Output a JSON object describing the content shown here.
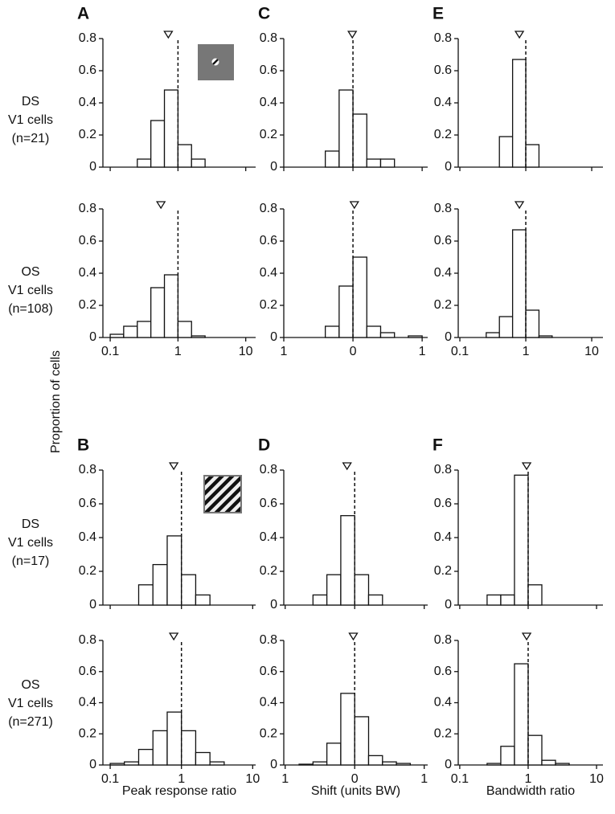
{
  "y_label": "Proportion of cells",
  "row_labels": [
    [
      "DS",
      "V1 cells",
      "(n=21)"
    ],
    [
      "OS",
      "V1 cells",
      "(n=108)"
    ],
    [
      "DS",
      "V1 cells",
      "(n=17)"
    ],
    [
      "OS",
      "V1 cells",
      "(n=271)"
    ]
  ],
  "chart_data": [
    {
      "type": "histogram",
      "label": "A",
      "log_x": true,
      "bins": [
        0.1,
        0.158,
        0.251,
        0.398,
        0.631,
        1,
        1.585,
        2.512,
        3.981,
        6.31,
        10
      ],
      "values": [
        0,
        0,
        0.05,
        0.29,
        0.48,
        0.14,
        0.05,
        0,
        0,
        0
      ],
      "xlim": [
        0.078,
        14
      ],
      "xticks": [
        0.1,
        1,
        10
      ],
      "show_xtick_labels": false,
      "ylim": [
        0,
        0.8
      ],
      "yticks": [
        0,
        0.2,
        0.4,
        0.6,
        0.8
      ],
      "median": 0.72,
      "ref_line": 1
    },
    {
      "type": "histogram",
      "label": "C",
      "log_x": false,
      "bins": [
        -1,
        -0.8,
        -0.6,
        -0.4,
        -0.2,
        0,
        0.2,
        0.4,
        0.6,
        0.8,
        1
      ],
      "values": [
        0,
        0,
        0,
        0.1,
        0.48,
        0.33,
        0.05,
        0.05,
        0,
        0
      ],
      "xlim": [
        -1,
        1.08
      ],
      "xticks": [
        {
          "value": -1,
          "label": "1"
        },
        0,
        1
      ],
      "show_xtick_labels": false,
      "ylim": [
        0,
        0.8
      ],
      "yticks": [
        0,
        0.2,
        0.4,
        0.6,
        0.8
      ],
      "median": -0.01,
      "ref_line": 0
    },
    {
      "type": "histogram",
      "label": "E",
      "log_x": true,
      "bins": [
        0.1,
        0.158,
        0.251,
        0.398,
        0.631,
        1,
        1.585,
        2.512,
        3.981,
        6.31,
        10
      ],
      "values": [
        0,
        0,
        0,
        0.19,
        0.67,
        0.14,
        0,
        0,
        0,
        0
      ],
      "xlim": [
        0.0945,
        14.8
      ],
      "xticks": [
        0.1,
        1,
        10
      ],
      "show_xtick_labels": false,
      "ylim": [
        0,
        0.8
      ],
      "yticks": [
        0,
        0.2,
        0.4,
        0.6,
        0.8
      ],
      "median": 0.8,
      "ref_line": 1
    },
    {
      "type": "histogram",
      "log_x": true,
      "bins": [
        0.1,
        0.158,
        0.251,
        0.398,
        0.631,
        1,
        1.585,
        2.512,
        3.981,
        6.31,
        10
      ],
      "values": [
        0.02,
        0.07,
        0.1,
        0.31,
        0.39,
        0.1,
        0.01,
        0,
        0,
        0
      ],
      "xlim": [
        0.078,
        14
      ],
      "xticks": [
        0.1,
        1,
        10
      ],
      "show_xtick_labels": true,
      "ylim": [
        0,
        0.8
      ],
      "yticks": [
        0,
        0.2,
        0.4,
        0.6,
        0.8
      ],
      "median": 0.56,
      "ref_line": 1
    },
    {
      "type": "histogram",
      "log_x": false,
      "bins": [
        -1,
        -0.8,
        -0.6,
        -0.4,
        -0.2,
        0,
        0.2,
        0.4,
        0.6,
        0.8,
        1
      ],
      "values": [
        0,
        0,
        0,
        0.07,
        0.32,
        0.5,
        0.07,
        0.03,
        0,
        0.01
      ],
      "xlim": [
        -1,
        1.08
      ],
      "xticks": [
        {
          "value": -1,
          "label": "1"
        },
        0,
        1
      ],
      "show_xtick_labels": true,
      "ylim": [
        0,
        0.8
      ],
      "yticks": [
        0,
        0.2,
        0.4,
        0.6,
        0.8
      ],
      "median": 0.02,
      "ref_line": 0
    },
    {
      "type": "histogram",
      "log_x": true,
      "bins": [
        0.1,
        0.158,
        0.251,
        0.398,
        0.631,
        1,
        1.585,
        2.512,
        3.981,
        6.31,
        10
      ],
      "values": [
        0,
        0,
        0.03,
        0.13,
        0.67,
        0.17,
        0.01,
        0,
        0,
        0
      ],
      "xlim": [
        0.0945,
        14.8
      ],
      "xticks": [
        0.1,
        1,
        10
      ],
      "show_xtick_labels": true,
      "ylim": [
        0,
        0.8
      ],
      "yticks": [
        0,
        0.2,
        0.4,
        0.6,
        0.8
      ],
      "median": 0.8,
      "ref_line": 1
    },
    {
      "type": "histogram",
      "label": "B",
      "log_x": true,
      "bins": [
        0.1,
        0.158,
        0.251,
        0.398,
        0.631,
        1,
        1.585,
        2.512,
        3.981,
        6.31,
        10
      ],
      "values": [
        0,
        0,
        0.12,
        0.24,
        0.41,
        0.18,
        0.06,
        0,
        0,
        0
      ],
      "xlim": [
        0.079,
        11
      ],
      "xticks": [
        0.1,
        1,
        10
      ],
      "show_xtick_labels": false,
      "ylim": [
        0,
        0.8
      ],
      "yticks": [
        0,
        0.2,
        0.4,
        0.6,
        0.8
      ],
      "median": 0.78,
      "ref_line": 1
    },
    {
      "type": "histogram",
      "label": "D",
      "log_x": false,
      "bins": [
        -1,
        -0.8,
        -0.6,
        -0.4,
        -0.2,
        0,
        0.2,
        0.4,
        0.6,
        0.8,
        1
      ],
      "values": [
        0,
        0,
        0.06,
        0.18,
        0.53,
        0.18,
        0.06,
        0,
        0,
        0
      ],
      "xlim": [
        -1.02,
        1.05
      ],
      "xticks": [
        {
          "value": -1,
          "label": "1"
        },
        0,
        1
      ],
      "show_xtick_labels": false,
      "ylim": [
        0,
        0.8
      ],
      "yticks": [
        0,
        0.2,
        0.4,
        0.6,
        0.8
      ],
      "median": -0.11,
      "ref_line": 0
    },
    {
      "type": "histogram",
      "label": "F",
      "log_x": true,
      "bins": [
        0.1,
        0.158,
        0.251,
        0.398,
        0.631,
        1,
        1.585,
        2.512,
        3.981,
        6.31,
        10
      ],
      "values": [
        0,
        0,
        0.06,
        0.06,
        0.77,
        0.12,
        0,
        0,
        0,
        0
      ],
      "xlim": [
        0.095,
        12.4
      ],
      "xticks": [
        0.1,
        1,
        10
      ],
      "show_xtick_labels": false,
      "ylim": [
        0,
        0.8
      ],
      "yticks": [
        0,
        0.2,
        0.4,
        0.6,
        0.8
      ],
      "median": 0.95,
      "ref_line": 1
    },
    {
      "type": "histogram",
      "xlabel": "Peak response ratio",
      "log_x": true,
      "bins": [
        0.1,
        0.158,
        0.251,
        0.398,
        0.631,
        1,
        1.585,
        2.512,
        3.981,
        6.31,
        10
      ],
      "values": [
        0.01,
        0.02,
        0.1,
        0.22,
        0.34,
        0.22,
        0.08,
        0.02,
        0,
        0
      ],
      "xlim": [
        0.079,
        11
      ],
      "xticks": [
        0.1,
        1,
        10
      ],
      "show_xtick_labels": true,
      "ylim": [
        0,
        0.8
      ],
      "yticks": [
        0,
        0.2,
        0.4,
        0.6,
        0.8
      ],
      "median": 0.78,
      "ref_line": 1
    },
    {
      "type": "histogram",
      "xlabel": "Shift (units BW)",
      "log_x": false,
      "bins": [
        -1,
        -0.8,
        -0.6,
        -0.4,
        -0.2,
        0,
        0.2,
        0.4,
        0.6,
        0.8,
        1
      ],
      "values": [
        0,
        0.005,
        0.02,
        0.14,
        0.46,
        0.31,
        0.06,
        0.02,
        0.01,
        0
      ],
      "xlim": [
        -1.02,
        1.05
      ],
      "xticks": [
        {
          "value": -1,
          "label": "1"
        },
        0,
        1
      ],
      "show_xtick_labels": true,
      "ylim": [
        0,
        0.8
      ],
      "yticks": [
        0,
        0.2,
        0.4,
        0.6,
        0.8
      ],
      "median": -0.02,
      "ref_line": 0
    },
    {
      "type": "histogram",
      "xlabel": "Bandwidth ratio",
      "log_x": true,
      "bins": [
        0.1,
        0.158,
        0.251,
        0.398,
        0.631,
        1,
        1.585,
        2.512,
        3.981,
        6.31,
        10
      ],
      "values": [
        0,
        0,
        0.01,
        0.12,
        0.65,
        0.19,
        0.03,
        0.01,
        0,
        0
      ],
      "xlim": [
        0.095,
        12.4
      ],
      "xticks": [
        0.1,
        1,
        10
      ],
      "show_xtick_labels": true,
      "ylim": [
        0,
        0.8
      ],
      "yticks": [
        0,
        0.2,
        0.4,
        0.6,
        0.8
      ],
      "median": 0.95,
      "ref_line": 1
    }
  ]
}
